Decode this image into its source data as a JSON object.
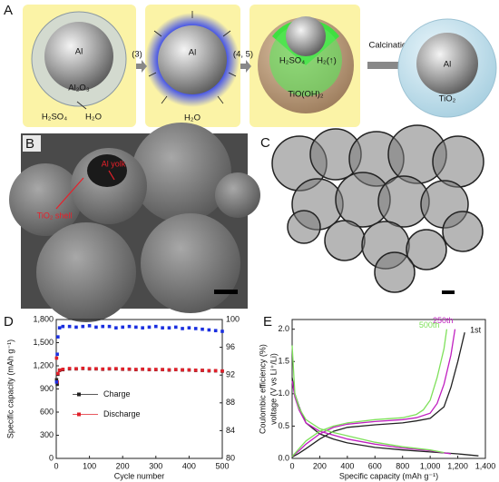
{
  "panel_a": {
    "label": "A",
    "box1": {
      "core": "Al",
      "shell": "Al₂O₃",
      "reagent": "H₂SO₄",
      "product": "H₂O"
    },
    "step1": "(3)",
    "box2": {
      "core": "Al",
      "product": "H₂O"
    },
    "step2": "(4, 5)",
    "box3": {
      "reagent": "H₂SO₄",
      "gas": "H₂(↑)",
      "shell": "TiO(OH)₂"
    },
    "step3": "Calcination",
    "sphere4": {
      "core": "Al",
      "shell": "TiO₂"
    }
  },
  "panel_b": {
    "label": "B",
    "annotations": [
      "Al yolk",
      "TiO₂ shell"
    ]
  },
  "panel_c": {
    "label": "C"
  },
  "chart_data": [
    {
      "panel": "D",
      "type": "scatter",
      "x_label": "Cycle number",
      "y_label": "Specific capacity (mAh g⁻¹)",
      "y2_label": "Coulombic efficiency (%)",
      "xlim": [
        0,
        500
      ],
      "xticks": [
        0,
        100,
        200,
        300,
        400,
        500
      ],
      "ylim": [
        0,
        1800
      ],
      "yticks": [
        0,
        300,
        600,
        900,
        {
          "value": 1200,
          "label": "1,200"
        },
        {
          "value": 1500,
          "label": "1,500"
        },
        {
          "value": 1800,
          "label": "1,800"
        }
      ],
      "y2lim": [
        80,
        100
      ],
      "y2ticks": [
        80,
        84,
        88,
        92,
        96,
        100
      ],
      "legend": "center-left",
      "x": [
        1,
        3,
        5,
        10,
        20,
        40,
        60,
        80,
        100,
        120,
        140,
        160,
        180,
        200,
        220,
        240,
        260,
        280,
        300,
        320,
        340,
        360,
        380,
        400,
        420,
        440,
        460,
        480,
        500
      ],
      "series": [
        {
          "name": "Charge",
          "color": "#222222",
          "values": [
            1020,
            960,
            1090,
            1140,
            1150,
            1160,
            1160,
            1165,
            1160,
            1160,
            1155,
            1160,
            1160,
            1155,
            1155,
            1150,
            1155,
            1150,
            1150,
            1150,
            1145,
            1150,
            1145,
            1145,
            1140,
            1140,
            1135,
            1135,
            1130
          ]
        },
        {
          "name": "Discharge",
          "color": "#e0202a",
          "values": [
            1300,
            990,
            1100,
            1145,
            1155,
            1165,
            1162,
            1168,
            1163,
            1162,
            1158,
            1162,
            1163,
            1158,
            1157,
            1153,
            1157,
            1152,
            1153,
            1152,
            1148,
            1152,
            1148,
            1147,
            1143,
            1142,
            1138,
            1137,
            1133
          ]
        },
        {
          "color": "#1a2fe0",
          "axis": "y2",
          "values": [
            91,
            95,
            97.5,
            98.8,
            99,
            99,
            98.9,
            99,
            99.1,
            98.9,
            99,
            99,
            98.8,
            98.9,
            99,
            98.9,
            98.8,
            98.9,
            99,
            98.8,
            98.8,
            98.9,
            98.7,
            98.8,
            98.7,
            98.6,
            98.5,
            98.4,
            98.3
          ]
        }
      ]
    },
    {
      "panel": "E",
      "type": "line",
      "x_label": "Specific capacity (mAh g⁻¹)",
      "y_label": "voltage (V vs Li⁺/Li)",
      "xlim": [
        0,
        1400
      ],
      "xticks": [
        0,
        200,
        400,
        600,
        800,
        {
          "value": 1000,
          "label": "1,000"
        },
        {
          "value": 1200,
          "label": "1,200"
        },
        {
          "value": 1400,
          "label": "1,400"
        }
      ],
      "ylim": [
        0,
        2.15
      ],
      "yticks": [
        {
          "value": 0,
          "label": "0.0"
        },
        0.5,
        {
          "value": 1,
          "label": "1.0"
        },
        1.5,
        {
          "value": 2,
          "label": "2.0"
        }
      ],
      "series": [
        {
          "name": "1st",
          "color": "#222222",
          "x": [
            0,
            20,
            50,
            100,
            200,
            300,
            400,
            600,
            800,
            1000,
            1200,
            1350,
            null,
            0,
            50,
            100,
            200,
            300,
            400,
            600,
            800,
            900,
            1000,
            1100,
            1150,
            1200,
            1250
          ],
          "values": [
            1.25,
            1.0,
            0.8,
            0.55,
            0.38,
            0.3,
            0.24,
            0.17,
            0.13,
            0.1,
            0.07,
            0.04,
            null,
            0.02,
            0.08,
            0.15,
            0.3,
            0.42,
            0.48,
            0.52,
            0.55,
            0.58,
            0.62,
            0.8,
            1.1,
            1.5,
            1.95
          ]
        },
        {
          "name": "250th",
          "color": "#c020c0",
          "x": [
            0,
            20,
            50,
            100,
            200,
            300,
            400,
            600,
            800,
            1000,
            1150,
            null,
            0,
            50,
            100,
            200,
            300,
            400,
            600,
            800,
            900,
            1000,
            1050,
            1100,
            1150,
            1180
          ],
          "values": [
            1.2,
            0.95,
            0.75,
            0.55,
            0.42,
            0.36,
            0.3,
            0.22,
            0.16,
            0.12,
            0.07,
            null,
            0.03,
            0.12,
            0.22,
            0.38,
            0.48,
            0.53,
            0.57,
            0.6,
            0.63,
            0.7,
            0.85,
            1.15,
            1.6,
            2.0
          ]
        },
        {
          "name": "500th",
          "color": "#7ee05a",
          "x": [
            0,
            20,
            50,
            100,
            200,
            300,
            400,
            600,
            800,
            1000,
            1100,
            null,
            0,
            50,
            100,
            200,
            300,
            400,
            600,
            800,
            900,
            950,
            1000,
            1050,
            1100,
            1120
          ],
          "values": [
            1.75,
            1.0,
            0.78,
            0.6,
            0.46,
            0.4,
            0.35,
            0.25,
            0.18,
            0.13,
            0.09,
            null,
            0.03,
            0.15,
            0.27,
            0.42,
            0.5,
            0.55,
            0.6,
            0.63,
            0.68,
            0.75,
            0.9,
            1.25,
            1.7,
            2.0
          ]
        }
      ]
    }
  ]
}
